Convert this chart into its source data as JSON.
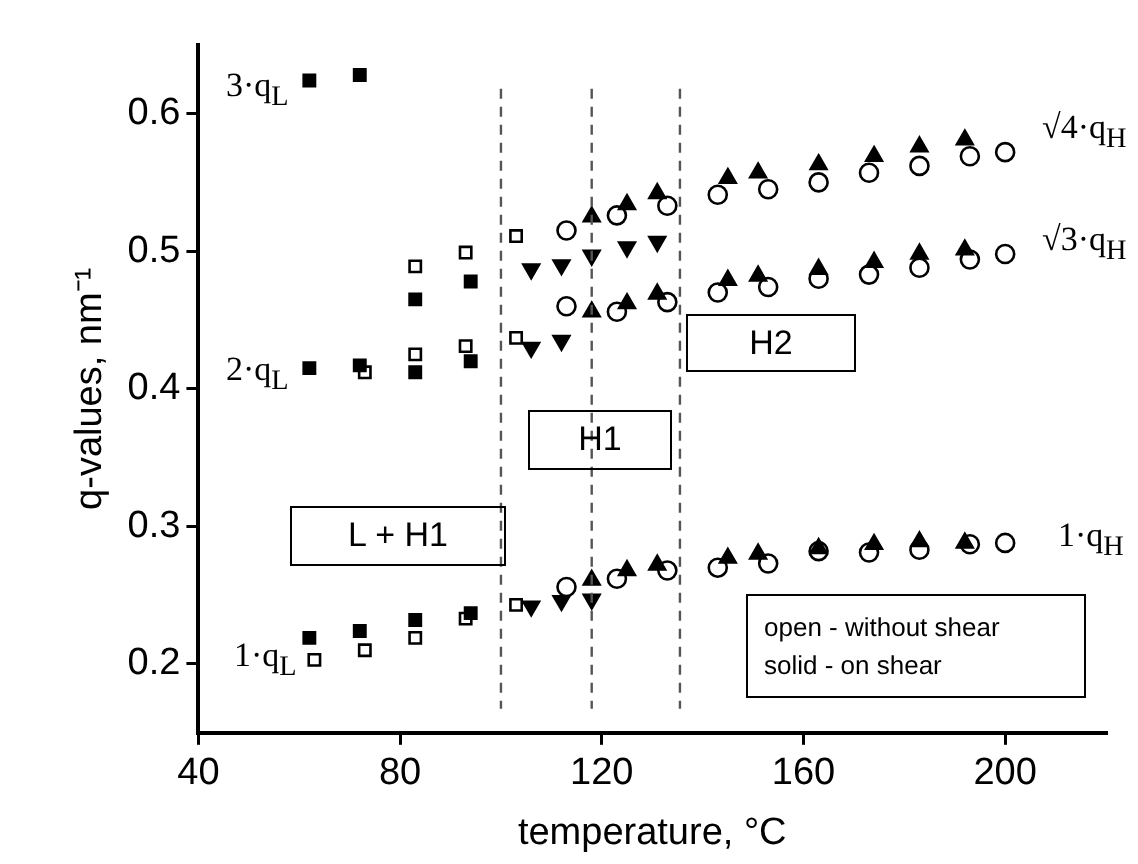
{
  "chart_data": {
    "type": "scatter",
    "xlabel": "temperature, °C",
    "ylabel": "q-values, nm⁻¹",
    "xlim": [
      40,
      220
    ],
    "xticks": [
      40,
      80,
      120,
      160,
      200
    ],
    "ylim": [
      0.15,
      0.65
    ],
    "yticks": [
      0.2,
      0.3,
      0.4,
      0.5,
      0.6
    ],
    "grid": false,
    "legend": false,
    "series": [
      {
        "marker": "square",
        "color": "#000000",
        "x": [
          62,
          72,
          62,
          72,
          83,
          94,
          83,
          94,
          62,
          72,
          83,
          94
        ],
        "values": [
          0.624,
          0.628,
          0.415,
          0.417,
          0.412,
          0.42,
          0.465,
          0.478,
          0.219,
          0.224,
          0.232,
          0.237
        ]
      },
      {
        "marker": "square",
        "color": "#000000",
        "x": [
          83,
          93,
          103,
          73,
          83,
          93,
          103,
          63,
          73,
          83,
          93,
          103
        ],
        "values": [
          0.489,
          0.499,
          0.511,
          0.412,
          0.425,
          0.431,
          0.437,
          0.203,
          0.21,
          0.219,
          0.233,
          0.243
        ]
      },
      {
        "marker": "triangle-down",
        "color": "#000000",
        "x": [
          106,
          112,
          118,
          106,
          112,
          118,
          125,
          131,
          106,
          112
        ],
        "values": [
          0.242,
          0.246,
          0.247,
          0.487,
          0.49,
          0.497,
          0.503,
          0.507,
          0.43,
          0.435
        ]
      },
      {
        "marker": "triangle",
        "color": "#000000",
        "x": [
          118,
          125,
          131,
          145,
          151,
          163,
          174,
          183,
          192,
          118,
          125,
          131,
          145,
          151,
          163,
          174,
          183,
          192,
          118,
          125,
          131,
          145,
          151,
          163,
          174,
          183,
          192
        ],
        "values": [
          0.525,
          0.534,
          0.542,
          0.553,
          0.557,
          0.563,
          0.569,
          0.576,
          0.581,
          0.456,
          0.462,
          0.469,
          0.479,
          0.482,
          0.487,
          0.492,
          0.498,
          0.501,
          0.261,
          0.268,
          0.272,
          0.277,
          0.28,
          0.284,
          0.287,
          0.289,
          0.288
        ]
      },
      {
        "marker": "circle",
        "color": "#000000",
        "x": [
          113,
          123,
          133,
          143,
          153,
          163,
          173,
          183,
          193,
          200,
          113,
          123,
          133,
          143,
          153,
          163,
          173,
          183,
          193,
          200,
          113,
          123,
          133,
          143,
          153,
          163,
          173,
          183,
          193,
          200
        ],
        "values": [
          0.515,
          0.526,
          0.533,
          0.541,
          0.545,
          0.55,
          0.557,
          0.562,
          0.569,
          0.572,
          0.46,
          0.456,
          0.463,
          0.47,
          0.474,
          0.48,
          0.483,
          0.488,
          0.494,
          0.498,
          0.256,
          0.262,
          0.268,
          0.27,
          0.273,
          0.282,
          0.281,
          0.283,
          0.287,
          0.288
        ]
      }
    ],
    "ref_lines": [
      {
        "axis": "x",
        "value": 100,
        "line_style": "dashed",
        "color": "#555555"
      },
      {
        "axis": "x",
        "value": 118,
        "line_style": "dashed",
        "color": "#555555"
      },
      {
        "axis": "x",
        "value": 135.5,
        "line_style": "dashed",
        "color": "#555555"
      }
    ],
    "annotations": [
      "3·q$_{L}$",
      "2·q$_{L}$",
      "1·q$_{L}$",
      "√4·q$_{H}$",
      "√3·q$_{H}$",
      "1·q$_{H}$",
      "L + H1",
      "H1",
      "H2",
      "open - without shear\nsolid - on shear"
    ]
  }
}
